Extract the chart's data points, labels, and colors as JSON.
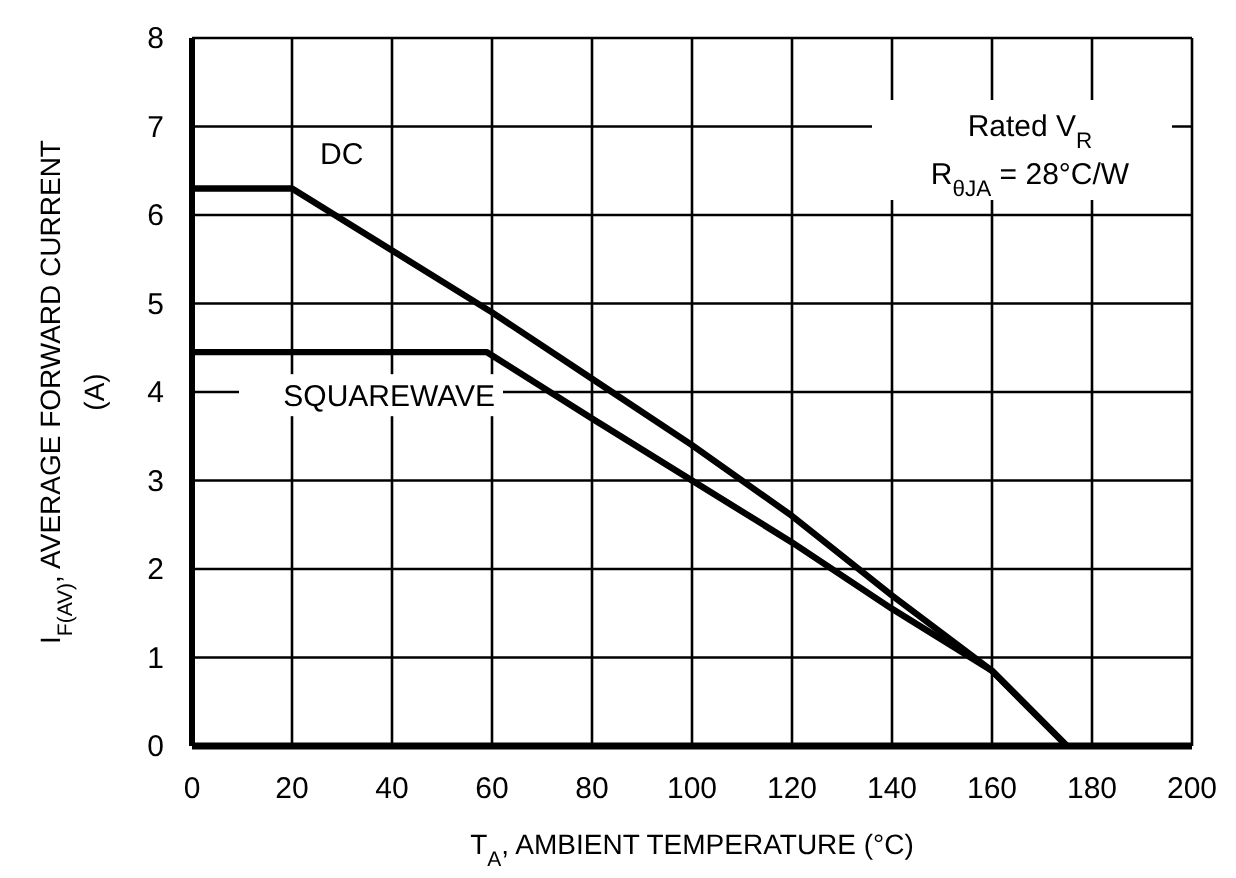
{
  "chart_data": {
    "type": "line",
    "xlabel": "T$_{A}$, AMBIENT TEMPERATURE (°C)",
    "ylabel": "I$_{F(AV)}$, AVERAGE FORWARD CURRENT (A)",
    "xlim": [
      0,
      200
    ],
    "ylim": [
      0,
      8
    ],
    "xticks": [
      0,
      20,
      40,
      60,
      80,
      100,
      120,
      140,
      160,
      180,
      200
    ],
    "yticks": [
      0,
      1,
      2,
      3,
      4,
      5,
      6,
      7,
      8
    ],
    "grid": true,
    "line_style": "solid",
    "series": [
      {
        "name": "DC",
        "color": "#000000",
        "x": [
          0,
          20,
          60,
          80,
          100,
          120,
          140,
          160,
          175
        ],
        "values": [
          6.3,
          6.3,
          4.9,
          4.15,
          3.4,
          2.6,
          1.7,
          0.85,
          0
        ]
      },
      {
        "name": "SQUAREWAVE",
        "color": "#000000",
        "x": [
          0,
          59,
          80,
          100,
          120,
          140,
          160,
          175
        ],
        "values": [
          4.45,
          4.45,
          3.7,
          3.0,
          2.3,
          1.55,
          0.85,
          0
        ]
      }
    ],
    "annotations": [
      "Rated V$_{R}$",
      "R$_{θJA}$ = 28°C/W"
    ]
  }
}
